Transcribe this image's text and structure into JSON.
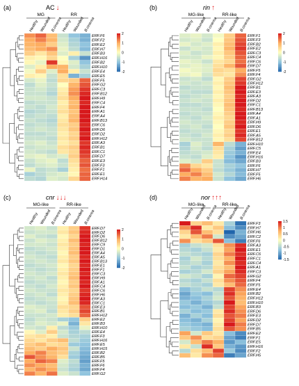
{
  "colors": {
    "low": "#2166ac",
    "mid_low": "#92c5de",
    "mid": "#ffffbf",
    "mid_high": "#fdae61",
    "high": "#d7191c",
    "arrow": "#e41a1c"
  },
  "chart_data": [
    {
      "type": "heatmap",
      "panel_label": "(a)",
      "title": "AC",
      "title_italic": false,
      "arrow": "↓",
      "groups": [
        "MG",
        "RR"
      ],
      "columns": [
        "Healthy",
        "Wounded",
        "B.cinerea",
        "Healthy",
        "Wounded",
        "B.cinerea"
      ],
      "rows": [
        "ERF.F6",
        "ERF.F2",
        "ERF.E2",
        "ERF.H7",
        "ERF.B3",
        "ERF.H16",
        "ERF.B2",
        "ERF.H10",
        "ERF.E4",
        "ERF.E5",
        "ERF.F5",
        "ERF.G2",
        "ERF.C3",
        "ERF.B12",
        "ERF.H9",
        "ERF.C4",
        "ERF.F4",
        "ERF.A1",
        "ERF.A4",
        "ERF.B13",
        "ERF.C6",
        "ERF.D6",
        "ERF.D2",
        "ERF.H12",
        "ERF.A3",
        "ERF.B1",
        "ERF.C1",
        "ERF.D7",
        "ERF.E3",
        "ERF.F3",
        "ERF.F1",
        "ERF.E1",
        "ERF.H14"
      ],
      "values": [
        [
          1.2,
          1.5,
          0.8,
          -0.5,
          -1.0,
          -1.2
        ],
        [
          1.0,
          1.3,
          0.9,
          -0.4,
          -0.8,
          -1.2
        ],
        [
          0.9,
          1.0,
          0.6,
          -0.3,
          -0.7,
          -1.0
        ],
        [
          0.8,
          1.0,
          1.2,
          -0.2,
          -0.6,
          -1.1
        ],
        [
          0.6,
          0.3,
          0.7,
          -0.3,
          0.2,
          -0.5
        ],
        [
          0.2,
          0.1,
          0.5,
          0.0,
          -0.8,
          -1.5
        ],
        [
          0.1,
          -0.2,
          1.8,
          0.1,
          -0.3,
          -1.0
        ],
        [
          -0.3,
          0.2,
          1.0,
          0.9,
          -0.4,
          -0.8
        ],
        [
          -0.1,
          0.6,
          -0.3,
          1.0,
          0.2,
          -0.5
        ],
        [
          0.2,
          0.1,
          -0.5,
          0.4,
          -1.2,
          -0.8
        ],
        [
          -0.4,
          -0.2,
          -0.6,
          0.5,
          0.6,
          1.5
        ],
        [
          -0.6,
          -0.3,
          -0.5,
          0.0,
          0.9,
          1.6
        ],
        [
          -0.5,
          -0.4,
          -0.6,
          0.2,
          1.1,
          1.8
        ],
        [
          -0.5,
          -0.5,
          -0.7,
          0.3,
          1.2,
          1.9
        ],
        [
          -0.4,
          -0.4,
          -0.5,
          0.4,
          1.0,
          2.0
        ],
        [
          -0.6,
          -0.5,
          -0.5,
          0.2,
          0.8,
          1.9
        ],
        [
          -0.5,
          -0.6,
          -0.4,
          0.3,
          0.9,
          2.0
        ],
        [
          -0.7,
          -0.6,
          -0.5,
          0.4,
          0.7,
          2.0
        ],
        [
          -0.6,
          -0.5,
          -0.6,
          0.2,
          0.8,
          2.0
        ],
        [
          -0.5,
          -0.6,
          -0.7,
          0.3,
          0.9,
          2.0
        ],
        [
          -0.6,
          -0.5,
          -0.6,
          0.4,
          0.6,
          1.9
        ],
        [
          -0.5,
          -0.4,
          -0.5,
          0.3,
          0.7,
          2.0
        ],
        [
          -0.6,
          -0.6,
          -0.5,
          0.2,
          0.5,
          1.9
        ],
        [
          -0.5,
          -0.5,
          -0.6,
          0.3,
          0.6,
          2.0
        ],
        [
          -0.4,
          -0.3,
          -0.5,
          0.2,
          0.4,
          1.8
        ],
        [
          -0.5,
          -0.4,
          -0.4,
          0.4,
          0.6,
          1.9
        ],
        [
          -0.4,
          -0.5,
          -0.6,
          0.3,
          0.5,
          1.8
        ],
        [
          -0.3,
          -0.2,
          -0.4,
          -0.3,
          0.6,
          1.7
        ],
        [
          -0.5,
          -0.3,
          -0.2,
          -0.6,
          0.4,
          1.5
        ],
        [
          -0.6,
          -0.4,
          -0.3,
          -0.5,
          0.3,
          1.6
        ],
        [
          -0.2,
          -0.6,
          -0.5,
          -0.8,
          0.2,
          1.4
        ],
        [
          -0.8,
          -0.6,
          -0.4,
          -0.3,
          0.1,
          1.5
        ],
        [
          -0.6,
          -0.7,
          -0.3,
          -0.4,
          0.5,
          1.5
        ]
      ],
      "legend_ticks": [
        2,
        1,
        0,
        -1,
        -2
      ],
      "vmin": -2,
      "vmax": 2
    },
    {
      "type": "heatmap",
      "panel_label": "(b)",
      "title": "rin",
      "title_italic": true,
      "arrow": "↑",
      "groups": [
        "MG-like",
        "RR-like"
      ],
      "columns": [
        "Healthy",
        "Wounded",
        "B.cinerea",
        "Healthy",
        "Wounded",
        "B.cinerea"
      ],
      "rows": [
        "ERF.F1",
        "ERF.F3",
        "ERF.B2",
        "ERF.E2",
        "ERF.C3",
        "ERF.C4",
        "ERF.C6",
        "ERF.D7",
        "ERF.F5",
        "ERF.F4",
        "ERF.G2",
        "ERF.H12",
        "ERF.B1",
        "ERF.E3",
        "ERF.A3",
        "ERF.D2",
        "ERF.C1",
        "ERF.B13",
        "ERF.A4",
        "ERF.A1",
        "ERF.H9",
        "ERF.D6",
        "ERF.E1",
        "ERF.A5",
        "ERF.B12",
        "ERF.H10",
        "ERF.C5",
        "ERF.E4",
        "ERF.H16",
        "ERF.B3",
        "ERF.F6",
        "ERF.H7",
        "ERF.F5",
        "ERF.H6"
      ],
      "values": [
        [
          -0.3,
          -0.2,
          -0.4,
          -0.1,
          0.6,
          1.5
        ],
        [
          -0.4,
          -0.3,
          -0.5,
          0.0,
          0.7,
          1.6
        ],
        [
          -0.2,
          -0.4,
          -0.3,
          0.2,
          0.8,
          1.7
        ],
        [
          -0.5,
          -0.3,
          -0.4,
          0.1,
          0.9,
          1.8
        ],
        [
          -0.3,
          -0.5,
          -0.4,
          0.2,
          0.7,
          1.6
        ],
        [
          -0.4,
          -0.4,
          -0.2,
          0.1,
          0.6,
          1.5
        ],
        [
          -0.2,
          -0.3,
          -0.5,
          0.3,
          0.5,
          1.4
        ],
        [
          -0.3,
          -0.2,
          -0.3,
          0.4,
          0.9,
          1.6
        ],
        [
          -0.1,
          -0.2,
          -0.3,
          0.5,
          0.4,
          1.0
        ],
        [
          -0.2,
          -0.1,
          -0.4,
          0.4,
          0.3,
          1.2
        ],
        [
          -0.5,
          -0.4,
          -0.6,
          0.1,
          0.6,
          1.7
        ],
        [
          -0.4,
          -0.5,
          -0.4,
          0.2,
          0.7,
          1.8
        ],
        [
          -0.6,
          -0.5,
          -0.5,
          0.1,
          0.8,
          2.0
        ],
        [
          -0.5,
          -0.6,
          -0.6,
          0.2,
          0.7,
          2.0
        ],
        [
          -0.6,
          -0.5,
          -0.4,
          0.1,
          0.6,
          1.9
        ],
        [
          -0.5,
          -0.4,
          -0.5,
          0.2,
          0.7,
          2.0
        ],
        [
          -0.6,
          -0.6,
          -0.5,
          0.1,
          0.8,
          2.0
        ],
        [
          -0.5,
          -0.5,
          -0.6,
          0.0,
          0.7,
          1.9
        ],
        [
          -0.6,
          -0.5,
          -0.5,
          0.1,
          0.6,
          2.0
        ],
        [
          -0.5,
          -0.6,
          -0.4,
          0.2,
          0.5,
          2.0
        ],
        [
          -0.4,
          -0.5,
          -0.5,
          0.1,
          0.6,
          1.9
        ],
        [
          -0.5,
          -0.4,
          -0.6,
          0.0,
          0.7,
          2.0
        ],
        [
          -0.6,
          -0.5,
          -0.5,
          0.1,
          0.5,
          1.8
        ],
        [
          -0.5,
          -0.6,
          -0.4,
          0.2,
          0.6,
          1.9
        ],
        [
          -0.4,
          -0.5,
          -0.5,
          0.1,
          0.4,
          1.7
        ],
        [
          -0.8,
          -0.3,
          -0.5,
          0.9,
          -0.6,
          -1.2
        ],
        [
          -0.7,
          -0.4,
          -0.6,
          0.4,
          -0.8,
          -1.4
        ],
        [
          -0.6,
          -0.5,
          -0.4,
          0.3,
          -0.9,
          -1.2
        ],
        [
          -0.5,
          -0.6,
          -0.3,
          0.2,
          -1.0,
          -1.5
        ],
        [
          -0.3,
          -0.4,
          0.6,
          -0.5,
          -1.1,
          -1.3
        ],
        [
          1.2,
          0.5,
          0.3,
          -0.5,
          -0.8,
          -1.0
        ],
        [
          1.5,
          1.0,
          0.6,
          -0.6,
          -0.9,
          -1.2
        ],
        [
          1.0,
          1.3,
          0.8,
          -0.4,
          -0.7,
          -1.1
        ],
        [
          1.3,
          0.9,
          1.0,
          -0.5,
          -1.0,
          -1.3
        ]
      ],
      "legend_ticks": [
        2,
        1,
        0,
        -1,
        -2
      ],
      "vmin": -2,
      "vmax": 2
    },
    {
      "type": "heatmap",
      "panel_label": "(c)",
      "title": "cnr",
      "title_italic": true,
      "arrow": "↓↓↓",
      "groups": [
        "MG-like",
        "RR-like"
      ],
      "columns": [
        "Healthy",
        "Wounded",
        "B.cinerea",
        "Healthy",
        "Wounded",
        "B.cinerea"
      ],
      "rows": [
        "ERF.D7",
        "ERF.D2",
        "ERF.D6",
        "ERF.B12",
        "ERF.C9",
        "ERF.D1",
        "ERF.A4",
        "ERF.A5",
        "ERF.B13",
        "ERF.E1",
        "ERF.F1",
        "ERF.C3",
        "ERF.H9",
        "ERF.A1",
        "ERF.C4",
        "ERF.C6",
        "ERF.H6",
        "ERF.A3",
        "ERF.C1",
        "ERF.E3",
        "ERF.B1",
        "ERF.H12",
        "ERF.E2",
        "ERF.B3",
        "ERF.H10",
        "ERF.E4",
        "ERF.F3",
        "ERF.H16",
        "ERF.E5",
        "ERF.H15",
        "ERF.B2",
        "ERF.B5",
        "ERF.F5",
        "ERF.F6",
        "ERF.F4",
        "ERF.G2"
      ],
      "values": [
        [
          -0.4,
          -0.3,
          -0.5,
          0.2,
          0.6,
          1.8
        ],
        [
          -0.5,
          -0.4,
          -0.4,
          0.3,
          0.7,
          1.9
        ],
        [
          -0.3,
          -0.5,
          -0.6,
          0.1,
          0.5,
          2.0
        ],
        [
          -0.5,
          -0.3,
          -0.4,
          0.2,
          0.8,
          2.0
        ],
        [
          -0.4,
          -0.4,
          -0.5,
          0.3,
          0.6,
          1.9
        ],
        [
          -0.6,
          -0.5,
          -0.4,
          0.2,
          0.7,
          2.0
        ],
        [
          -0.5,
          -0.6,
          -0.5,
          0.1,
          0.8,
          2.0
        ],
        [
          -0.4,
          -0.5,
          -0.6,
          0.2,
          0.6,
          1.9
        ],
        [
          -0.5,
          -0.4,
          -0.5,
          0.3,
          0.7,
          2.0
        ],
        [
          -0.6,
          -0.5,
          -0.4,
          0.1,
          0.5,
          1.9
        ],
        [
          -0.5,
          -0.6,
          -0.5,
          0.2,
          0.6,
          2.0
        ],
        [
          -0.4,
          -0.5,
          -0.4,
          0.3,
          0.7,
          1.9
        ],
        [
          -0.5,
          -0.4,
          -0.6,
          0.2,
          0.8,
          2.0
        ],
        [
          -0.6,
          -0.5,
          -0.5,
          0.1,
          0.6,
          1.9
        ],
        [
          -0.5,
          -0.6,
          -0.4,
          0.2,
          0.7,
          2.0
        ],
        [
          -0.4,
          -0.5,
          -0.5,
          0.3,
          0.5,
          1.8
        ],
        [
          -0.5,
          -0.4,
          -0.6,
          0.2,
          0.6,
          1.9
        ],
        [
          -0.6,
          -0.5,
          -0.4,
          0.1,
          0.7,
          2.0
        ],
        [
          -0.5,
          -0.6,
          -0.5,
          0.2,
          0.8,
          1.9
        ],
        [
          -0.3,
          -0.4,
          -0.5,
          0.4,
          0.5,
          1.6
        ],
        [
          -0.4,
          -0.3,
          -0.6,
          0.3,
          0.6,
          1.7
        ],
        [
          -0.5,
          -0.5,
          -0.4,
          0.2,
          0.4,
          1.5
        ],
        [
          -0.6,
          -0.4,
          -0.5,
          -0.8,
          -1.0,
          0.6
        ],
        [
          -0.5,
          -0.3,
          -0.4,
          -0.2,
          -1.2,
          0.3
        ],
        [
          -0.4,
          -0.5,
          0.2,
          -0.6,
          -0.9,
          -0.2
        ],
        [
          0.1,
          -0.3,
          0.6,
          -0.4,
          -0.8,
          -0.6
        ],
        [
          0.3,
          0.4,
          0.2,
          -0.5,
          -0.7,
          -0.8
        ],
        [
          0.5,
          0.3,
          0.6,
          0.8,
          -0.6,
          -0.9
        ],
        [
          0.6,
          0.8,
          0.4,
          0.5,
          -0.9,
          -1.0
        ],
        [
          0.8,
          0.6,
          1.0,
          0.7,
          -0.5,
          -1.1
        ],
        [
          1.0,
          1.3,
          0.8,
          0.6,
          -0.8,
          -1.2
        ],
        [
          1.6,
          1.2,
          0.9,
          0.4,
          -0.9,
          -1.3
        ],
        [
          1.0,
          1.5,
          1.3,
          -0.3,
          -0.6,
          -1.4
        ],
        [
          1.2,
          1.0,
          0.8,
          -0.4,
          -0.7,
          -1.2
        ],
        [
          0.9,
          1.2,
          1.0,
          -0.5,
          -0.8,
          -1.3
        ],
        [
          1.3,
          0.9,
          1.4,
          -0.3,
          -0.5,
          -1.0
        ]
      ],
      "legend_ticks": [
        2,
        1,
        0,
        -1,
        -2
      ],
      "vmin": -2,
      "vmax": 2
    },
    {
      "type": "heatmap",
      "panel_label": "(d)",
      "title": "nor",
      "title_italic": true,
      "arrow": "↑↑↑",
      "groups": [
        "MG-like",
        "RR-like"
      ],
      "columns": [
        "Healthy",
        "Wounded",
        "B.cinerea",
        "Healthy",
        "Wounded",
        "B.cinerea"
      ],
      "rows": [
        "ERF.F3",
        "ERF.H7",
        "ERF.H6",
        "ERF.C2",
        "ERF.F6",
        "ERF.A3",
        "ERF.E1",
        "ERF.C6",
        "ERF.C1",
        "ERF.C4",
        "ERF.A1",
        "ERF.C3",
        "ERF.G2",
        "ERF.F4",
        "ERF.F5",
        "ERF.E4",
        "ERF.B2",
        "ERF.H12",
        "ERF.H10",
        "ERF.B3",
        "ERF.D6",
        "ERF.E3",
        "ERF.D2",
        "ERF.D7",
        "ERF.B5",
        "ERF.E2",
        "ERF.F1",
        "ERF.E5",
        "ERF.H16",
        "ERF.F2",
        "ERF.H5"
      ],
      "values": [
        [
          1.5,
          0.4,
          0.6,
          0.2,
          -0.6,
          -1.4
        ],
        [
          0.9,
          1.4,
          0.2,
          0.5,
          -0.8,
          -1.2
        ],
        [
          0.4,
          1.2,
          0.6,
          0.3,
          -1.5,
          -0.9
        ],
        [
          0.2,
          0.6,
          1.0,
          -0.3,
          -1.2,
          -1.0
        ],
        [
          0.9,
          0.3,
          0.5,
          1.2,
          -0.8,
          -1.3
        ],
        [
          -0.6,
          -0.4,
          -0.3,
          0.3,
          0.9,
          1.4
        ],
        [
          -0.5,
          -0.6,
          -0.4,
          0.2,
          0.8,
          1.5
        ],
        [
          -0.4,
          -0.5,
          -0.6,
          0.4,
          1.0,
          1.4
        ],
        [
          -0.6,
          -0.3,
          -0.5,
          0.3,
          0.7,
          1.5
        ],
        [
          -0.5,
          -0.4,
          -0.6,
          0.2,
          0.9,
          1.4
        ],
        [
          -0.4,
          -0.6,
          -0.5,
          0.3,
          0.6,
          1.5
        ],
        [
          -0.6,
          -0.5,
          -0.3,
          0.4,
          0.8,
          1.4
        ],
        [
          -0.3,
          -0.4,
          -0.6,
          0.1,
          1.1,
          1.3
        ],
        [
          -0.5,
          -0.6,
          -0.4,
          0.3,
          0.9,
          1.2
        ],
        [
          -0.4,
          -0.5,
          -0.6,
          0.2,
          0.6,
          1.1
        ],
        [
          -0.8,
          -0.6,
          -0.4,
          -0.5,
          1.3,
          0.9
        ],
        [
          -1.0,
          -0.7,
          -0.8,
          -0.4,
          1.4,
          0.8
        ],
        [
          -0.9,
          -0.8,
          -0.6,
          -0.3,
          1.2,
          0.7
        ],
        [
          -0.7,
          -0.9,
          -0.7,
          -0.5,
          1.5,
          0.6
        ],
        [
          -0.8,
          -0.7,
          -0.9,
          -0.4,
          1.3,
          0.8
        ],
        [
          -0.6,
          -0.8,
          -0.7,
          0.2,
          1.4,
          0.9
        ],
        [
          -0.9,
          -0.6,
          -0.8,
          0.3,
          1.2,
          1.0
        ],
        [
          -0.8,
          -0.9,
          -0.6,
          0.1,
          1.3,
          0.8
        ],
        [
          -0.7,
          -0.8,
          -0.9,
          0.2,
          1.5,
          1.0
        ],
        [
          -0.6,
          -0.7,
          -0.8,
          0.3,
          1.2,
          0.9
        ],
        [
          0.8,
          -0.3,
          0.5,
          0.2,
          -0.8,
          -1.2
        ],
        [
          0.5,
          0.9,
          0.3,
          0.4,
          -1.0,
          -1.3
        ],
        [
          -0.3,
          0.6,
          1.0,
          0.7,
          -1.1,
          -0.8
        ],
        [
          0.2,
          -0.4,
          1.4,
          0.5,
          -0.9,
          -1.1
        ],
        [
          -0.5,
          0.3,
          0.6,
          1.3,
          -0.7,
          -1.2
        ],
        [
          0.6,
          0.2,
          0.9,
          1.1,
          -1.3,
          -1.0
        ]
      ],
      "legend_ticks": [
        1.5,
        1,
        0.5,
        0,
        -0.5,
        -1,
        -1.5
      ],
      "vmin": -1.5,
      "vmax": 1.5
    }
  ]
}
